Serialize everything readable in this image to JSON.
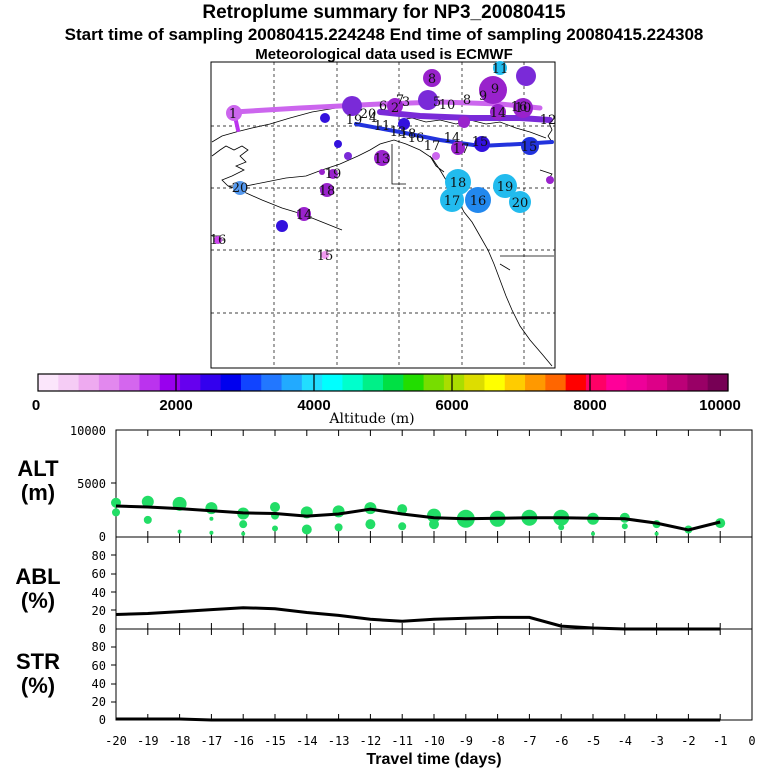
{
  "header": {
    "title": "Retroplume summary for NP3_20080415",
    "sampling": "Start time of sampling 20080415.224248     End time of sampling 20080415.224308",
    "met": "Meteorological data used is ECMWF"
  },
  "map": {
    "plume_labels": [
      {
        "label": "1",
        "color": "#cc44ee"
      },
      {
        "label": "2",
        "color": "#7a2ad8"
      },
      {
        "label": "3",
        "color": "#7a2ad8"
      },
      {
        "label": "4",
        "color": "#9922cc"
      },
      {
        "label": "5",
        "color": "#7a2ad8"
      },
      {
        "label": "6",
        "color": "#9922cc"
      },
      {
        "label": "7",
        "color": "#7a2ad8"
      },
      {
        "label": "8",
        "color": "#9922cc"
      },
      {
        "label": "9",
        "color": "#9922cc"
      },
      {
        "label": "10",
        "color": "#9922cc"
      },
      {
        "label": "11",
        "color": "#2233dd"
      },
      {
        "label": "12",
        "color": "#9922cc"
      },
      {
        "label": "13",
        "color": "#9922cc"
      },
      {
        "label": "14",
        "color": "#9922cc"
      },
      {
        "label": "15",
        "color": "#2233dd"
      },
      {
        "label": "16",
        "color": "#2233dd"
      },
      {
        "label": "17",
        "color": "#2233dd"
      },
      {
        "label": "18",
        "color": "#2233dd"
      },
      {
        "label": "19",
        "color": "#2233dd"
      },
      {
        "label": "20",
        "color": "#9922cc"
      },
      {
        "label": "18",
        "color": "#22bbee"
      },
      {
        "label": "17",
        "color": "#22bbee"
      },
      {
        "label": "16",
        "color": "#2288ee"
      },
      {
        "label": "19",
        "color": "#22bbee"
      },
      {
        "label": "20",
        "color": "#22bbee"
      },
      {
        "label": "20",
        "color": "#5599ee"
      },
      {
        "label": "13",
        "color": "#9922cc"
      },
      {
        "label": "14",
        "color": "#9922cc"
      },
      {
        "label": "15",
        "color": "#ee99ee"
      },
      {
        "label": "16",
        "color": "#cc44ee"
      },
      {
        "label": "19",
        "color": "#9922cc"
      },
      {
        "label": "18",
        "color": "#9922cc"
      },
      {
        "label": "8",
        "color": "#9922cc"
      },
      {
        "label": "9",
        "color": "#9922cc"
      },
      {
        "label": "10",
        "color": "#9922cc"
      },
      {
        "label": "11",
        "color": "#2288ee"
      },
      {
        "label": "14",
        "color": "#9922cc"
      },
      {
        "label": "15",
        "color": "#9922cc"
      },
      {
        "label": "16",
        "color": "#9922cc"
      },
      {
        "label": "17",
        "color": "#9922cc"
      }
    ]
  },
  "colorbar": {
    "tick_labels": [
      "0",
      "2000",
      "4000",
      "6000",
      "8000",
      "10000"
    ],
    "label": "Altitude (m)",
    "colors": [
      "#fbe6fb",
      "#f5ccf5",
      "#eeaaf0",
      "#e288ee",
      "#d466ee",
      "#bb33ee",
      "#9900ee",
      "#6600ee",
      "#3300ee",
      "#0000ee",
      "#1144ff",
      "#2277ff",
      "#22aaff",
      "#22ddff",
      "#00ffff",
      "#00ffcc",
      "#00f088",
      "#00e044",
      "#22dd00",
      "#77dd00",
      "#aadd00",
      "#dddd00",
      "#ffff00",
      "#ffcc00",
      "#ff9900",
      "#ff6600",
      "#ff0000",
      "#ff0066",
      "#ff0099",
      "#ee0099",
      "#dd0088",
      "#bb0077",
      "#990066",
      "#770055"
    ]
  },
  "panels": {
    "alt": {
      "label1": "ALT",
      "label2": "(m)",
      "ticks": [
        "10000",
        "5000",
        "0"
      ]
    },
    "abl": {
      "label1": "ABL",
      "label2": "(%)",
      "ticks": [
        "80",
        "60",
        "40",
        "20",
        "0"
      ]
    },
    "str": {
      "label1": "STR",
      "label2": "(%)",
      "ticks": [
        "80",
        "60",
        "40",
        "20",
        "0"
      ]
    }
  },
  "x_axis": {
    "tick_labels": [
      "-20",
      "-19",
      "-18",
      "-17",
      "-16",
      "-15",
      "-14",
      "-13",
      "-12",
      "-11",
      "-10",
      "-9",
      "-8",
      "-7",
      "-6",
      "-5",
      "-4",
      "-3",
      "-2",
      "-1",
      "0"
    ],
    "label": "Travel time (days)"
  },
  "chart_data": {
    "type": "line",
    "xlabel": "Travel time (days)",
    "xlim": [
      -20,
      0
    ],
    "panels": [
      {
        "name": "ALT",
        "ylabel": "ALT (m)",
        "ylim": [
          0,
          10000
        ],
        "line": {
          "x": [
            -20,
            -19,
            -18,
            -17,
            -16,
            -15,
            -14,
            -13,
            -12,
            -11,
            -10,
            -9,
            -8,
            -7,
            -6,
            -5,
            -4,
            -3,
            -2,
            -1
          ],
          "y": [
            2900,
            2800,
            2650,
            2450,
            2250,
            2200,
            1950,
            2150,
            2600,
            2150,
            1800,
            1700,
            1750,
            1800,
            1800,
            1750,
            1700,
            1300,
            650,
            1400
          ]
        },
        "markers": [
          {
            "x": -20,
            "y": 3200,
            "r": 5
          },
          {
            "x": -20,
            "y": 2300,
            "r": 4
          },
          {
            "x": -19,
            "y": 3300,
            "r": 6
          },
          {
            "x": -19,
            "y": 1600,
            "r": 4
          },
          {
            "x": -18,
            "y": 3100,
            "r": 7
          },
          {
            "x": -18,
            "y": 500,
            "r": 2
          },
          {
            "x": -17,
            "y": 2700,
            "r": 6
          },
          {
            "x": -17,
            "y": 1700,
            "r": 2
          },
          {
            "x": -17,
            "y": 400,
            "r": 2
          },
          {
            "x": -16,
            "y": 2200,
            "r": 6
          },
          {
            "x": -16,
            "y": 1200,
            "r": 4
          },
          {
            "x": -16,
            "y": 300,
            "r": 2
          },
          {
            "x": -15,
            "y": 2800,
            "r": 5
          },
          {
            "x": -15,
            "y": 2000,
            "r": 4
          },
          {
            "x": -15,
            "y": 800,
            "r": 3
          },
          {
            "x": -14,
            "y": 2300,
            "r": 6
          },
          {
            "x": -14,
            "y": 700,
            "r": 5
          },
          {
            "x": -13,
            "y": 2400,
            "r": 6
          },
          {
            "x": -13,
            "y": 900,
            "r": 4
          },
          {
            "x": -12,
            "y": 2700,
            "r": 6
          },
          {
            "x": -12,
            "y": 1200,
            "r": 5
          },
          {
            "x": -11,
            "y": 2600,
            "r": 5
          },
          {
            "x": -11,
            "y": 1000,
            "r": 4
          },
          {
            "x": -10,
            "y": 2000,
            "r": 7
          },
          {
            "x": -10,
            "y": 1200,
            "r": 5
          },
          {
            "x": -9,
            "y": 1700,
            "r": 9
          },
          {
            "x": -8,
            "y": 1700,
            "r": 8
          },
          {
            "x": -7,
            "y": 1800,
            "r": 8
          },
          {
            "x": -6,
            "y": 1800,
            "r": 8
          },
          {
            "x": -6,
            "y": 900,
            "r": 3
          },
          {
            "x": -5,
            "y": 1700,
            "r": 6
          },
          {
            "x": -5,
            "y": 300,
            "r": 2
          },
          {
            "x": -4,
            "y": 1800,
            "r": 5
          },
          {
            "x": -4,
            "y": 1000,
            "r": 3
          },
          {
            "x": -3,
            "y": 1200,
            "r": 4
          },
          {
            "x": -3,
            "y": 300,
            "r": 2
          },
          {
            "x": -2,
            "y": 700,
            "r": 4
          },
          {
            "x": -1,
            "y": 1300,
            "r": 5
          }
        ]
      },
      {
        "name": "ABL",
        "ylabel": "ABL (%)",
        "ylim": [
          0,
          95
        ],
        "line": {
          "x": [
            -20,
            -19,
            -18,
            -17,
            -16,
            -15,
            -14,
            -13,
            -12,
            -11,
            -10,
            -9,
            -8,
            -7,
            -6,
            -5,
            -4,
            -3,
            -2,
            -1
          ],
          "y": [
            15,
            16,
            18,
            20,
            22,
            21,
            17,
            14,
            10,
            8,
            10,
            11,
            12,
            12,
            3,
            1,
            0,
            0,
            0,
            0
          ]
        }
      },
      {
        "name": "STR",
        "ylabel": "STR (%)",
        "ylim": [
          0,
          95
        ],
        "line": {
          "x": [
            -20,
            -19,
            -18,
            -17,
            -16,
            -15,
            -14,
            -13,
            -12,
            -11,
            -10,
            -9,
            -8,
            -7,
            -6,
            -5,
            -4,
            -3,
            -2,
            -1
          ],
          "y": [
            1,
            1,
            1,
            0,
            0,
            0,
            0,
            0,
            0,
            0,
            0,
            0,
            0,
            0,
            0,
            0,
            0,
            0,
            0,
            0
          ]
        }
      }
    ]
  }
}
